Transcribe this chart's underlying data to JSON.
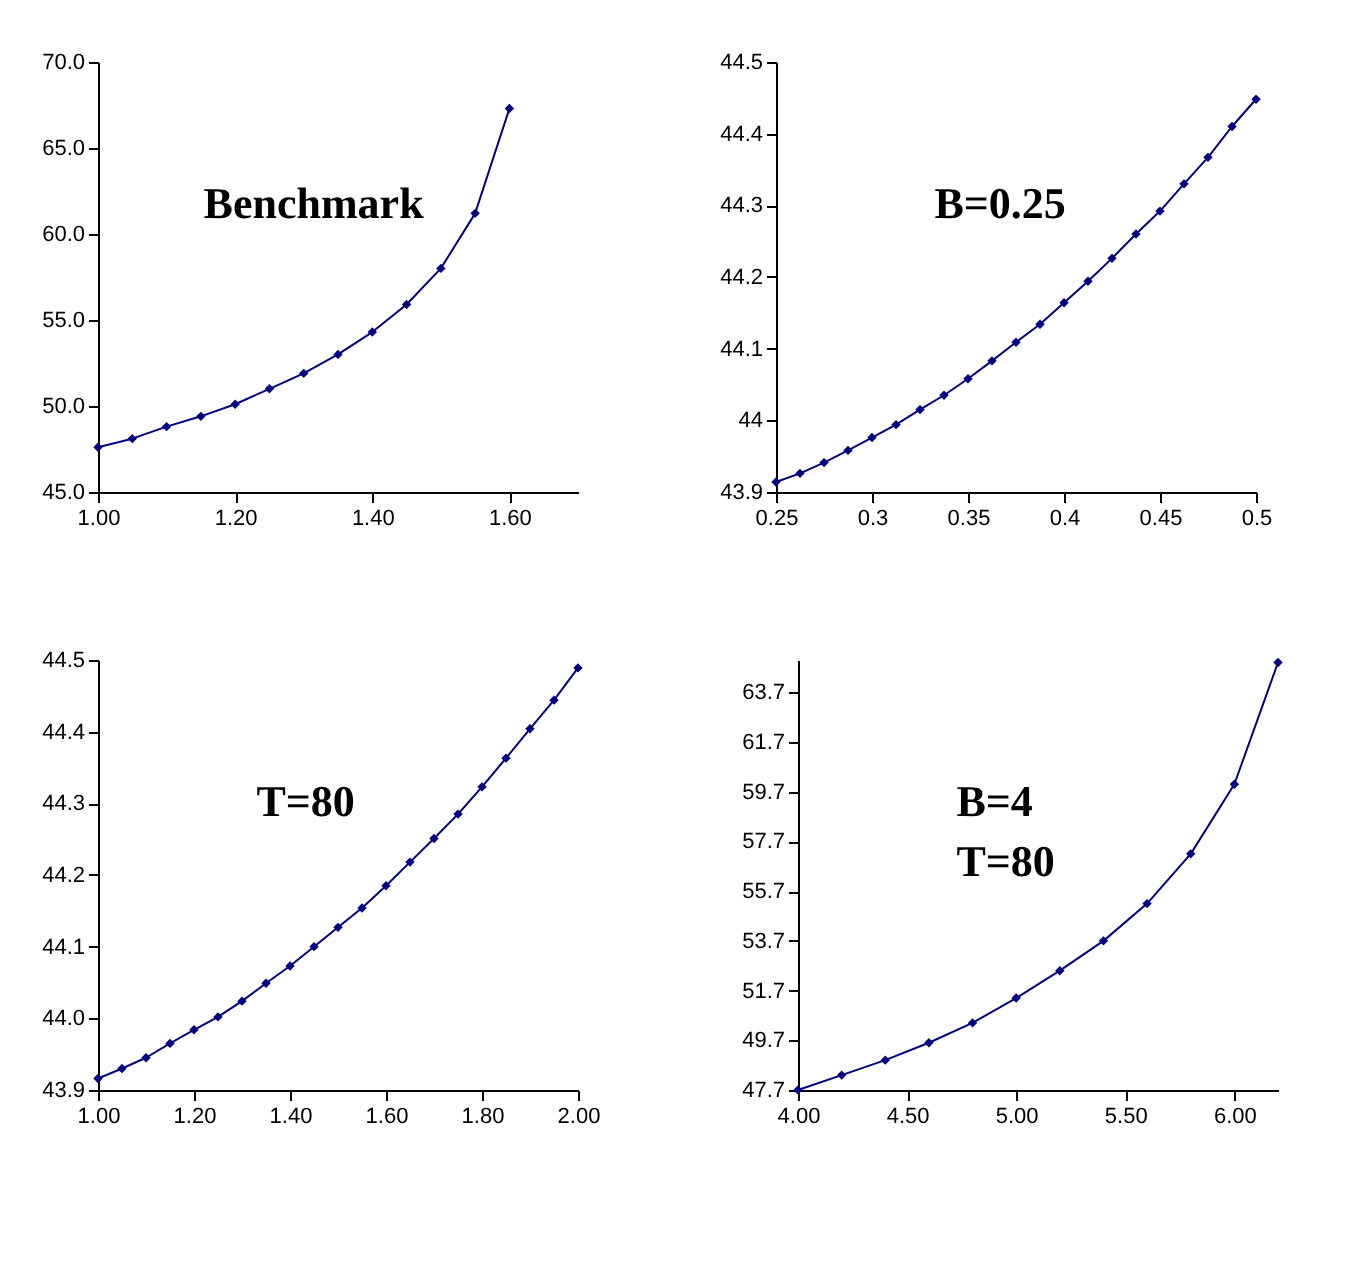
{
  "chart_data": [
    {
      "type": "line",
      "marker": "diamond",
      "line_style": "solid",
      "grid": false,
      "annotations": [
        "Benchmark"
      ],
      "x": [
        1.0,
        1.05,
        1.1,
        1.15,
        1.2,
        1.25,
        1.3,
        1.35,
        1.4,
        1.45,
        1.5,
        1.55,
        1.6
      ],
      "series": [
        {
          "color": "#000080",
          "values": [
            47.6,
            48.1,
            48.8,
            49.4,
            50.1,
            51.0,
            51.9,
            53.0,
            54.3,
            55.9,
            58.0,
            61.2,
            67.3
          ]
        }
      ],
      "xlim": [
        1.0,
        1.7
      ],
      "xticks": [
        {
          "value": 1.0,
          "label": "1.00"
        },
        {
          "value": 1.2,
          "label": "1.20"
        },
        {
          "value": 1.4,
          "label": "1.40"
        },
        {
          "value": 1.6,
          "label": "1.60"
        }
      ],
      "ylim": [
        45,
        70
      ],
      "yticks": [
        {
          "value": 45,
          "label": "45.0"
        },
        {
          "value": 50,
          "label": "50.0"
        },
        {
          "value": 55,
          "label": "55.0"
        },
        {
          "value": 60,
          "label": "60.0"
        },
        {
          "value": 65,
          "label": "65.0"
        },
        {
          "value": 70,
          "label": "70.0"
        }
      ]
    },
    {
      "type": "line",
      "marker": "diamond",
      "line_style": "solid",
      "grid": false,
      "annotations": [
        "B=0.25"
      ],
      "x": [
        0.25,
        0.2625,
        0.275,
        0.2875,
        0.3,
        0.3125,
        0.325,
        0.3375,
        0.35,
        0.3625,
        0.375,
        0.3875,
        0.4,
        0.4125,
        0.425,
        0.4375,
        0.45,
        0.4625,
        0.475,
        0.4875,
        0.5
      ],
      "series": [
        {
          "color": "#000080",
          "values": [
            43.914,
            43.926,
            43.941,
            43.958,
            43.976,
            43.994,
            44.015,
            44.035,
            44.058,
            44.083,
            44.109,
            44.134,
            44.164,
            44.194,
            44.226,
            44.26,
            44.292,
            44.33,
            44.367,
            44.41,
            44.448
          ]
        }
      ],
      "xlim": [
        0.25,
        0.5
      ],
      "xticks": [
        0.25,
        0.3,
        0.35,
        0.4,
        0.45,
        0.5
      ],
      "ylim": [
        43.9,
        44.5
      ],
      "yticks": [
        43.9,
        44,
        44.1,
        44.2,
        44.3,
        44.4,
        44.5
      ]
    },
    {
      "type": "line",
      "marker": "diamond",
      "line_style": "solid",
      "grid": false,
      "annotations": [
        "T=80"
      ],
      "x": [
        1.0,
        1.05,
        1.1,
        1.15,
        1.2,
        1.25,
        1.3,
        1.35,
        1.4,
        1.45,
        1.5,
        1.55,
        1.6,
        1.65,
        1.7,
        1.75,
        1.8,
        1.85,
        1.9,
        1.95,
        2.0
      ],
      "series": [
        {
          "color": "#000080",
          "values": [
            43.916,
            43.93,
            43.945,
            43.965,
            43.984,
            44.002,
            44.024,
            44.049,
            44.073,
            44.1,
            44.127,
            44.154,
            44.185,
            44.218,
            44.251,
            44.285,
            44.323,
            44.363,
            44.404,
            44.444,
            44.489
          ]
        }
      ],
      "xlim": [
        1.0,
        2.0
      ],
      "xticks": [
        {
          "value": 1.0,
          "label": "1.00"
        },
        {
          "value": 1.2,
          "label": "1.20"
        },
        {
          "value": 1.4,
          "label": "1.40"
        },
        {
          "value": 1.6,
          "label": "1.60"
        },
        {
          "value": 1.8,
          "label": "1.80"
        },
        {
          "value": 2.0,
          "label": "2.00"
        }
      ],
      "ylim": [
        43.9,
        44.5
      ],
      "yticks": [
        43.9,
        {
          "value": 44,
          "label": "44.0"
        },
        44.1,
        44.2,
        44.3,
        44.4,
        44.5
      ]
    },
    {
      "type": "line",
      "marker": "diamond",
      "line_style": "solid",
      "grid": false,
      "annotations": [
        "B=4",
        "T=80"
      ],
      "x": [
        4.0,
        4.2,
        4.4,
        4.6,
        4.8,
        5.0,
        5.2,
        5.4,
        5.6,
        5.8,
        6.0,
        6.2
      ],
      "series": [
        {
          "color": "#000080",
          "values": [
            47.7,
            48.3,
            48.9,
            49.6,
            50.4,
            51.4,
            52.5,
            53.7,
            55.2,
            57.2,
            60.0,
            64.9
          ]
        }
      ],
      "xlim": [
        4.0,
        6.2
      ],
      "xticks": [
        {
          "value": 4.0,
          "label": "4.00"
        },
        {
          "value": 4.5,
          "label": "4.50"
        },
        {
          "value": 5.0,
          "label": "5.00"
        },
        {
          "value": 5.5,
          "label": "5.50"
        },
        {
          "value": 6.0,
          "label": "6.00"
        }
      ],
      "ylim": [
        47.7,
        65.0
      ],
      "yticks": [
        47.7,
        49.7,
        51.7,
        53.7,
        55.7,
        57.7,
        59.7,
        61.7,
        63.7
      ]
    }
  ]
}
